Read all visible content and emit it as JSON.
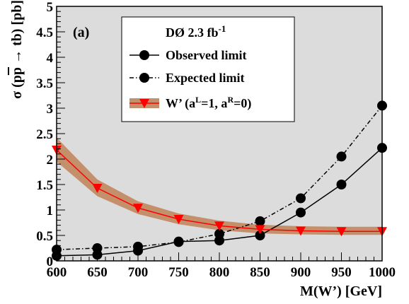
{
  "chart_data": {
    "type": "line",
    "panel_label": "(a)",
    "xlabel": "M(W’) [GeV]",
    "ylabel": {
      "prefix": "σ (p",
      "pbar": "p",
      "suffix": " → tb) [pb]"
    },
    "xlim": [
      600,
      1000
    ],
    "ylim": [
      0,
      5
    ],
    "x_ticks": [
      "600",
      "650",
      "700",
      "750",
      "800",
      "850",
      "900",
      "950",
      "1000"
    ],
    "y_ticks": [
      "0",
      "0.5",
      "1",
      "1.5",
      "2",
      "2.5",
      "3",
      "3.5",
      "4",
      "4.5",
      "5"
    ],
    "plot_background": "#dcdcdc",
    "legend": {
      "title_main": "DØ 2.3 fb",
      "title_sup": "-1",
      "placement": "top-center"
    },
    "series": [
      {
        "name": "Observed limit",
        "style": "solid",
        "marker": "circle",
        "color": "#000000",
        "x": [
          600,
          650,
          700,
          750,
          800,
          850,
          900,
          950,
          1000
        ],
        "y": [
          0.1,
          0.12,
          0.2,
          0.38,
          0.4,
          0.5,
          0.95,
          1.5,
          2.22
        ]
      },
      {
        "name": "Expected limit",
        "style": "dash-dot",
        "marker": "circle",
        "color": "#000000",
        "x": [
          600,
          650,
          700,
          750,
          800,
          850,
          900,
          950,
          1000
        ],
        "y": [
          0.22,
          0.25,
          0.28,
          0.37,
          0.53,
          0.78,
          1.23,
          2.05,
          3.05
        ]
      },
      {
        "name_parts": {
          "a": "W’ (a",
          "b": "L",
          "c": "=1, a",
          "d": "R",
          "e": "=0)"
        },
        "style": "solid",
        "marker": "triangle-down",
        "color": "#ff0000",
        "band_color": "#c4906b",
        "x": [
          600,
          650,
          700,
          750,
          800,
          850,
          900,
          950,
          1000
        ],
        "y": [
          2.18,
          1.43,
          1.04,
          0.82,
          0.69,
          0.62,
          0.59,
          0.58,
          0.58
        ],
        "band_low": [
          1.95,
          1.27,
          0.92,
          0.72,
          0.6,
          0.54,
          0.52,
          0.51,
          0.51
        ],
        "band_high": [
          2.42,
          1.6,
          1.17,
          0.93,
          0.79,
          0.71,
          0.68,
          0.67,
          0.67
        ]
      }
    ]
  }
}
